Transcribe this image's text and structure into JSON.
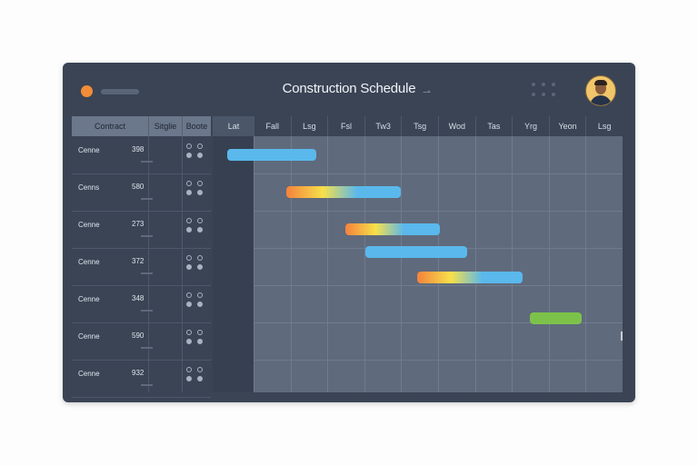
{
  "window": {
    "title": "Construction Schedule",
    "title_mark": "⇀"
  },
  "colors": {
    "window_bg": "#3a4455",
    "accent_dot": "#f28c38",
    "bar_blue": "#5ab8ec",
    "bar_gradient_orange_yellow_blue": [
      "#f4823d",
      "#f7e04a",
      "#5ab8ec"
    ],
    "bar_green": "#7cc24a"
  },
  "table": {
    "headers": [
      "Contract",
      "Sitglie",
      "Boote"
    ]
  },
  "rows": [
    {
      "name": "Cenne",
      "num": "398"
    },
    {
      "name": "Cenns",
      "num": "580"
    },
    {
      "name": "Cenne",
      "num": "273"
    },
    {
      "name": "Cenne",
      "num": "372"
    },
    {
      "name": "Cenne",
      "num": "348"
    },
    {
      "name": "Cenne",
      "num": "590"
    },
    {
      "name": "Cenne",
      "num": "932"
    }
  ],
  "timeline": {
    "headers": [
      "Lat",
      "Fall",
      "Lsg",
      "Fsl",
      "Tw3",
      "Tsg",
      "Wod",
      "Tas",
      "Yrg",
      "Yeon",
      "Lsg"
    ]
  },
  "tasks": [
    {
      "row": 0,
      "start": 0.4,
      "end": 2.8,
      "color": "blue"
    },
    {
      "row": 1,
      "start": 2.0,
      "end": 5.1,
      "color": "gradient"
    },
    {
      "row": 2,
      "start": 3.6,
      "end": 6.15,
      "color": "gradient"
    },
    {
      "row": 2.62,
      "start": 4.15,
      "end": 6.9,
      "color": "blue"
    },
    {
      "row": 3.3,
      "start": 5.55,
      "end": 8.4,
      "color": "gradient"
    },
    {
      "row": 4.4,
      "start": 8.6,
      "end": 10,
      "color": "green"
    }
  ]
}
